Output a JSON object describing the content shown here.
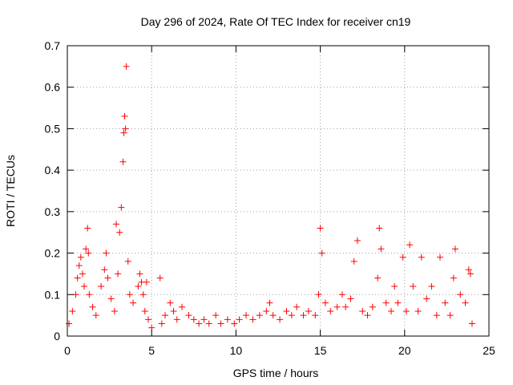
{
  "chart_data": {
    "type": "scatter",
    "title": "Day 296 of 2024, Rate Of TEC Index for receiver cn19",
    "xlabel": "GPS time / hours",
    "ylabel": "ROTI / TECUs",
    "xlim": [
      0,
      25
    ],
    "ylim": [
      0,
      0.7
    ],
    "xticks": [
      "0",
      "5",
      "10",
      "15",
      "20",
      "25"
    ],
    "yticks": [
      "0",
      "0.1",
      "0.2",
      "0.3",
      "0.4",
      "0.5",
      "0.6",
      "0.7"
    ],
    "grid": true,
    "legend": "none",
    "marker": "+",
    "color": "#ff0000",
    "series": [
      {
        "x": [
          0.1,
          0.3,
          0.5,
          0.6,
          0.7,
          0.8,
          0.9,
          1.0,
          1.1,
          1.2,
          1.25,
          1.3,
          1.5,
          1.7,
          2.0,
          2.2,
          2.3,
          2.4,
          2.6,
          2.8,
          2.9,
          3.0,
          3.1,
          3.2,
          3.3,
          3.35,
          3.4,
          3.45,
          3.5,
          3.6,
          3.7,
          3.9,
          4.2,
          4.3,
          4.4,
          4.5,
          4.6,
          4.7,
          4.8,
          5.0,
          5.5,
          5.6,
          5.8,
          6.1,
          6.3,
          6.5,
          6.8,
          7.2,
          7.5,
          7.8,
          8.1,
          8.4,
          8.8,
          9.1,
          9.5,
          9.9,
          10.2,
          10.6,
          11.0,
          11.4,
          11.8,
          12.0,
          12.2,
          12.6,
          13.0,
          13.3,
          13.6,
          14.0,
          14.3,
          14.7,
          14.9,
          15.0,
          15.1,
          15.3,
          15.6,
          16.0,
          16.3,
          16.5,
          16.8,
          17.0,
          17.2,
          17.5,
          17.8,
          18.1,
          18.4,
          18.5,
          18.6,
          18.9,
          19.2,
          19.4,
          19.6,
          19.9,
          20.1,
          20.3,
          20.5,
          20.8,
          21.0,
          21.3,
          21.6,
          21.9,
          22.1,
          22.4,
          22.7,
          22.9,
          23.0,
          23.3,
          23.6,
          23.8,
          23.9,
          24.0
        ],
        "y": [
          0.03,
          0.06,
          0.1,
          0.14,
          0.17,
          0.19,
          0.15,
          0.12,
          0.21,
          0.26,
          0.2,
          0.1,
          0.07,
          0.05,
          0.12,
          0.16,
          0.2,
          0.14,
          0.09,
          0.06,
          0.27,
          0.15,
          0.25,
          0.31,
          0.42,
          0.49,
          0.53,
          0.5,
          0.65,
          0.18,
          0.1,
          0.08,
          0.12,
          0.15,
          0.13,
          0.1,
          0.06,
          0.13,
          0.04,
          0.02,
          0.14,
          0.03,
          0.05,
          0.08,
          0.06,
          0.04,
          0.07,
          0.05,
          0.04,
          0.03,
          0.04,
          0.03,
          0.05,
          0.03,
          0.04,
          0.03,
          0.04,
          0.05,
          0.04,
          0.05,
          0.06,
          0.08,
          0.05,
          0.04,
          0.06,
          0.05,
          0.07,
          0.05,
          0.06,
          0.05,
          0.1,
          0.26,
          0.2,
          0.08,
          0.06,
          0.07,
          0.1,
          0.07,
          0.09,
          0.18,
          0.23,
          0.06,
          0.05,
          0.07,
          0.14,
          0.26,
          0.21,
          0.08,
          0.06,
          0.12,
          0.08,
          0.19,
          0.06,
          0.22,
          0.12,
          0.06,
          0.19,
          0.09,
          0.12,
          0.05,
          0.19,
          0.08,
          0.05,
          0.14,
          0.21,
          0.1,
          0.08,
          0.16,
          0.15,
          0.03
        ]
      }
    ]
  }
}
